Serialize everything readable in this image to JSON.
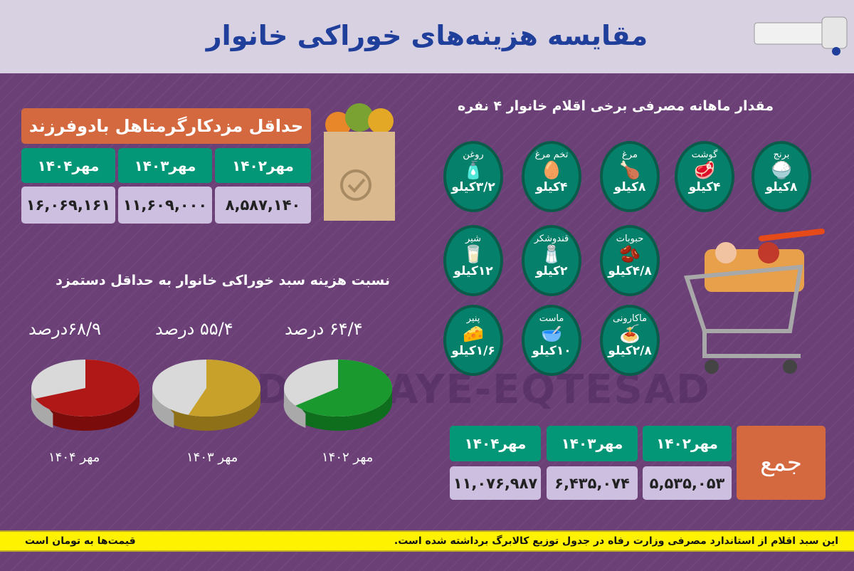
{
  "header": {
    "title": "مقایسه هزینه‌های خوراکی خانوار"
  },
  "wage": {
    "title": "حداقل مزدکارگرمتاهل بادوفرزند",
    "columns": [
      {
        "label": "مهر۱۴۰۲",
        "value": "۸,۵۸۷,۱۴۰"
      },
      {
        "label": "مهر۱۴۰۳",
        "value": "۱۱,۶۰۹,۰۰۰"
      },
      {
        "label": "مهر۱۴۰۴",
        "value": "۱۶,۰۶۹,۱۶۱"
      }
    ]
  },
  "items": {
    "title": "مقدار ماهانه مصرفی برخی اقلام خانوار ۴ نفره",
    "list": [
      {
        "name": "برنج",
        "qty": "۸کیلو",
        "icon": "rice-sack-icon",
        "glyph": "🍚"
      },
      {
        "name": "گوشت",
        "qty": "۴کیلو",
        "icon": "meat-icon",
        "glyph": "🥩"
      },
      {
        "name": "مرغ",
        "qty": "۸کیلو",
        "icon": "chicken-icon",
        "glyph": "🍗"
      },
      {
        "name": "تخم مرغ",
        "qty": "۴کیلو",
        "icon": "eggs-icon",
        "glyph": "🥚"
      },
      {
        "name": "روغن",
        "qty": "۳/۲کیلو",
        "icon": "oil-bottle-icon",
        "glyph": "🧴"
      },
      {
        "name": "حبوبات",
        "qty": "۴/۸کیلو",
        "icon": "beans-icon",
        "glyph": "🫘"
      },
      {
        "name": "قندوشکر",
        "qty": "۲کیلو",
        "icon": "sugar-icon",
        "glyph": "🧂"
      },
      {
        "name": "شیر",
        "qty": "۱۲کیلو",
        "icon": "milk-icon",
        "glyph": "🥛"
      },
      {
        "name": "ماکارونی",
        "qty": "۲/۸کیلو",
        "icon": "pasta-icon",
        "glyph": "🍝"
      },
      {
        "name": "ماست",
        "qty": "۱۰کیلو",
        "icon": "yogurt-icon",
        "glyph": "🥣"
      },
      {
        "name": "پنیر",
        "qty": "۱/۶کیلو",
        "icon": "cheese-icon",
        "glyph": "🧀"
      }
    ]
  },
  "ratio": {
    "title": "نسبت هزینه سبد خوراکی خانوار به حداقل دستمزد",
    "pies": [
      {
        "year": "مهر ۱۴۰۲",
        "label": "۶۴/۴ درصد",
        "percent": 64.4,
        "color": "#1a9a2e",
        "dark": "#0f6e1d"
      },
      {
        "year": "مهر ۱۴۰۳",
        "label": "۵۵/۴ درصد",
        "percent": 55.4,
        "color": "#c8a12a",
        "dark": "#8e7018"
      },
      {
        "year": "مهر ۱۴۰۴",
        "label": "۶۸/۹درصد",
        "percent": 68.9,
        "color": "#b01818",
        "dark": "#7a0c0c"
      }
    ],
    "rest_color": "#d9d9d9"
  },
  "total": {
    "label": "جمع",
    "columns": [
      {
        "label": "مهر۱۴۰۲",
        "value": "۵,۵۳۵,۰۵۳"
      },
      {
        "label": "مهر۱۴۰۳",
        "value": "۶,۴۳۵,۰۷۴"
      },
      {
        "label": "مهر۱۴۰۴",
        "value": "۱۱,۰۷۶,۹۸۷"
      }
    ]
  },
  "footer": {
    "note": "این سبد اقلام از استاندارد مصرفی وزارت رفاه در جدول توزیع کالابرگ برداشته شده است.",
    "currency": "قیمت‌ها به تومان است"
  },
  "watermark": "DONYAYE-EQTESAD",
  "colors": {
    "background": "#6b4077",
    "title": "#1f3f9b",
    "green": "#039677",
    "orange": "#d4693f",
    "lavender": "#cdbfe0",
    "footer": "#fff200"
  }
}
